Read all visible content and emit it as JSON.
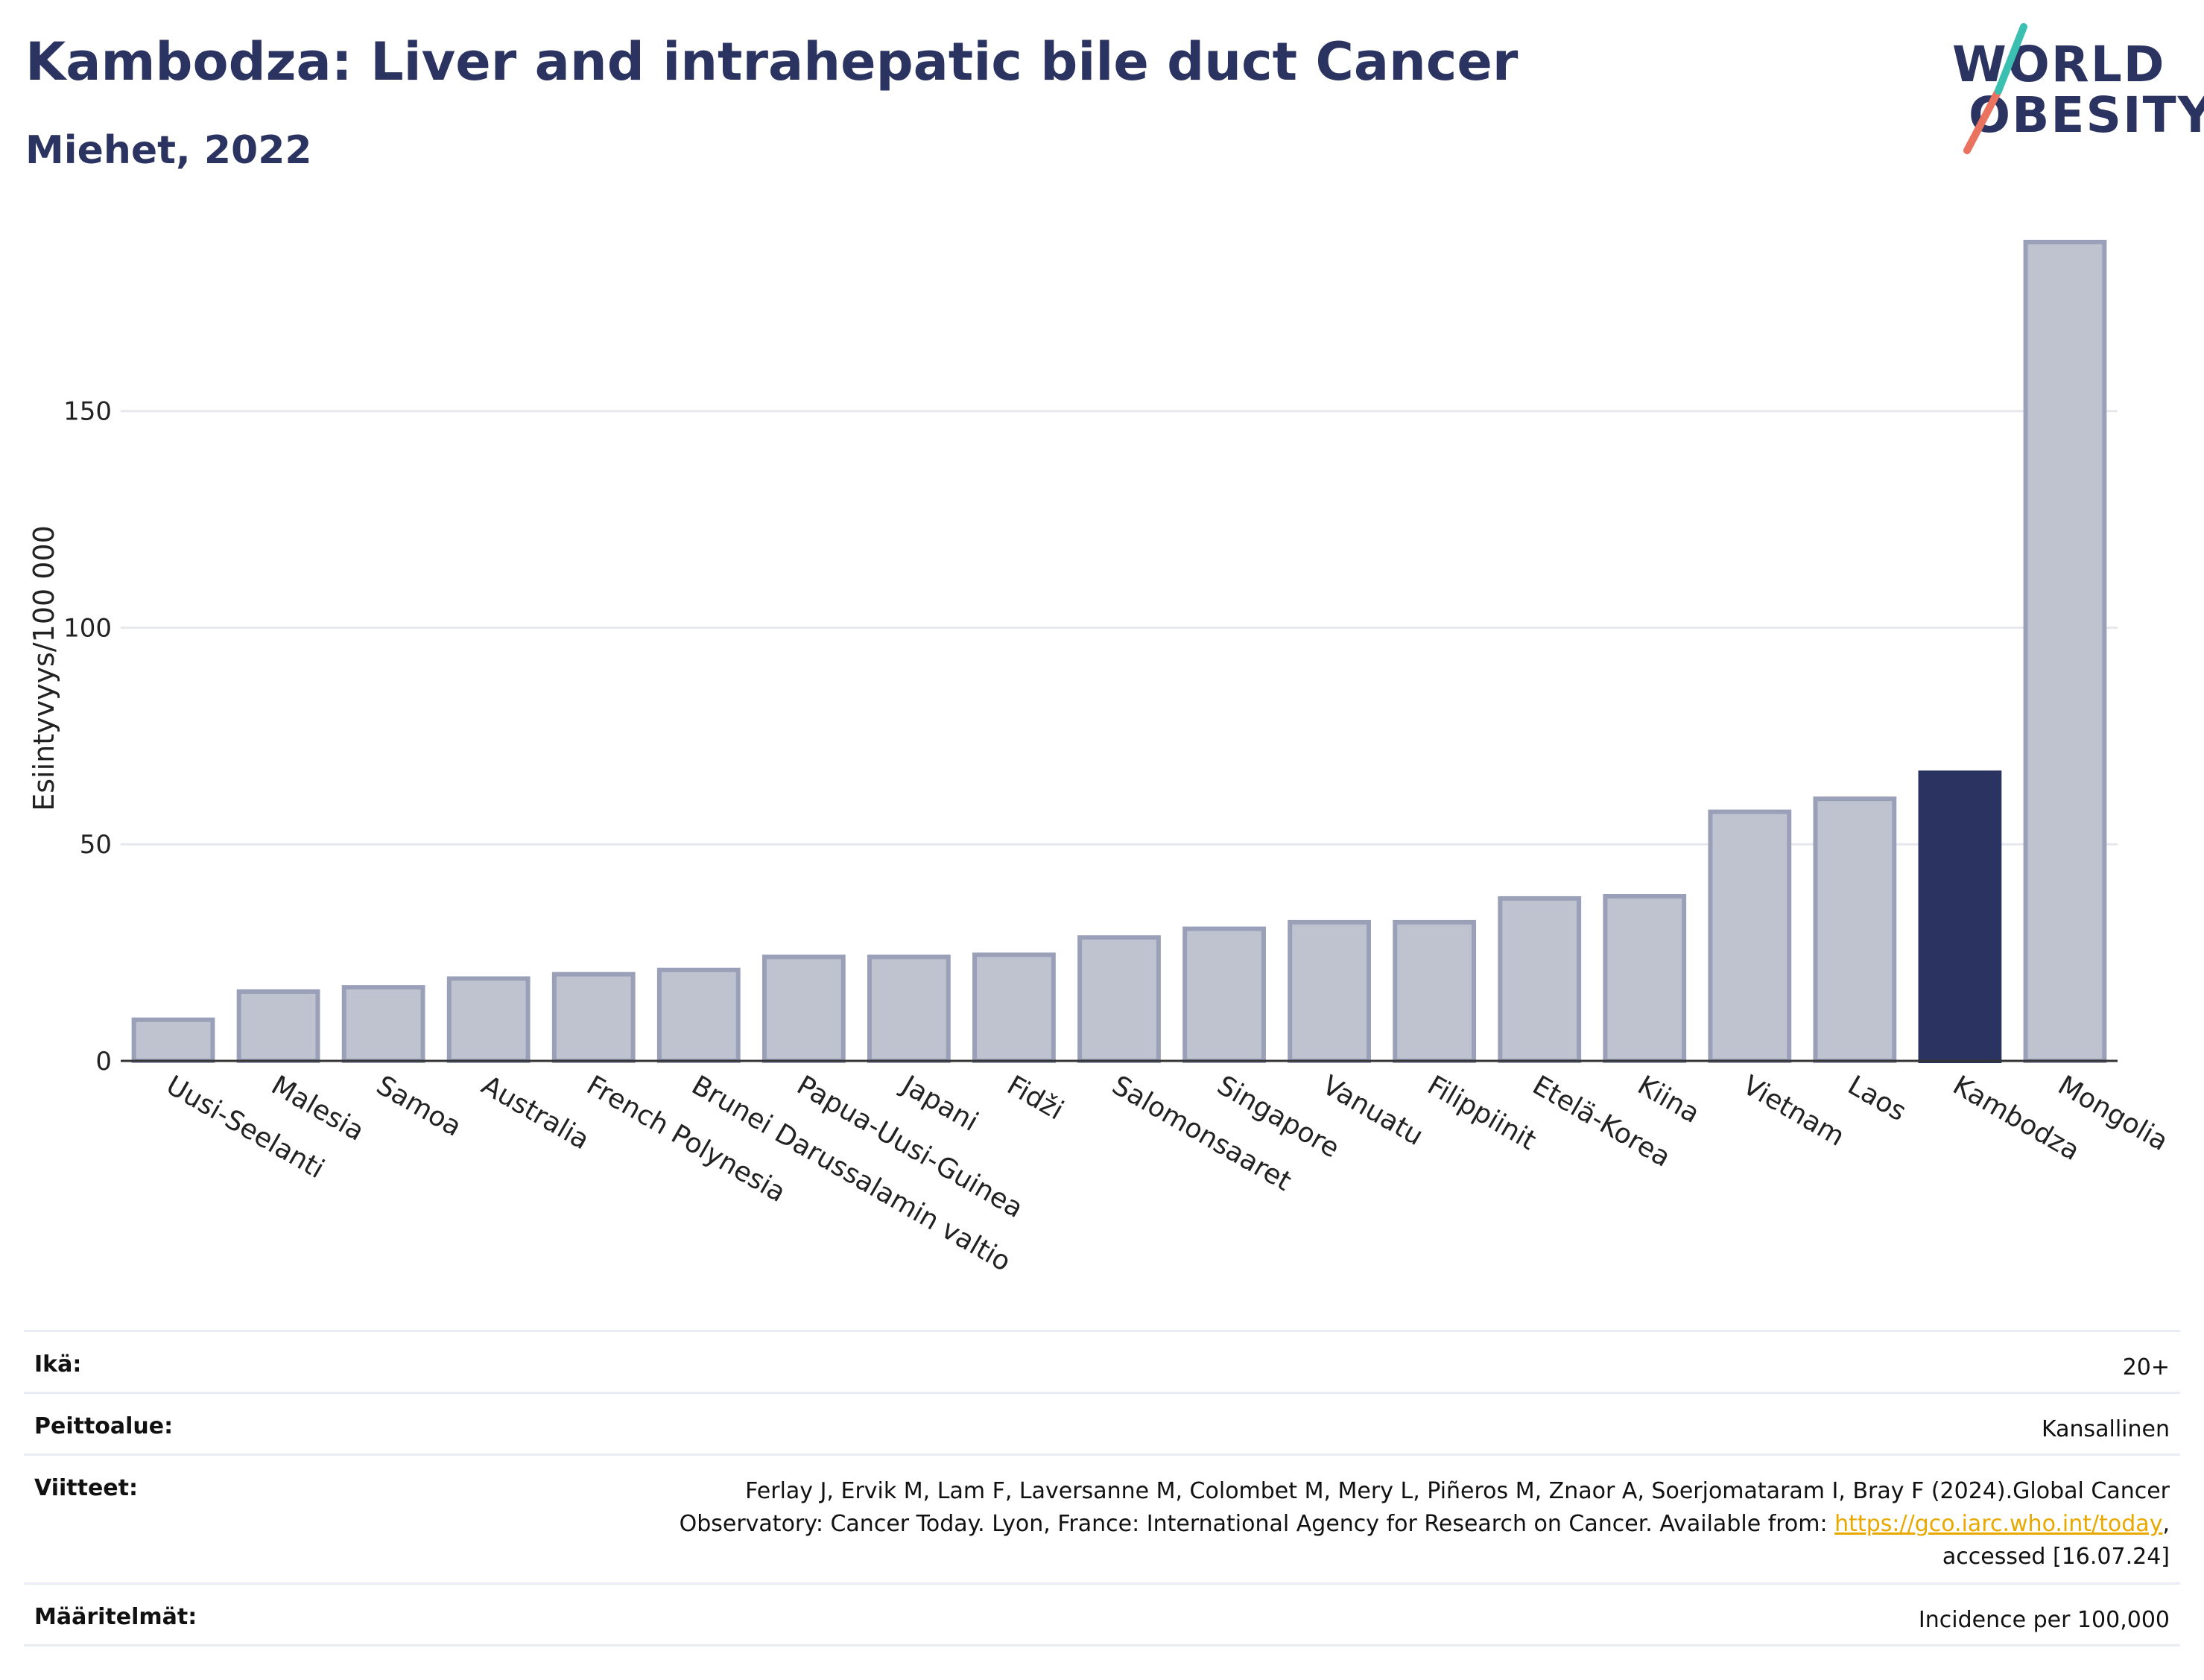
{
  "title": "Kambodza: Liver and intrahepatic bile duct Cancer",
  "subtitle": "Miehet, 2022",
  "logo": {
    "line1": "WORLD",
    "line2": "OBESITY"
  },
  "chart_data": {
    "type": "bar",
    "ylabel": "Esiintyvyys/100 000",
    "xlabel": "",
    "ylim": [
      0,
      195
    ],
    "yticks": [
      0,
      50,
      100,
      150
    ],
    "grid": true,
    "categories": [
      "Uusi-Seelanti",
      "Malesia",
      "Samoa",
      "Australia",
      "French Polynesia",
      "Brunei Darussalamin valtio",
      "Papua-Uusi-Guinea",
      "Japani",
      "Fidži",
      "Salomonsaaret",
      "Singapore",
      "Vanuatu",
      "Filippiinit",
      "Etelä-Korea",
      "Kiina",
      "Vietnam",
      "Laos",
      "Kambodza",
      "Mongolia"
    ],
    "values": [
      9.5,
      16,
      17,
      19,
      20,
      21,
      24,
      24,
      24.5,
      28.5,
      30.5,
      32,
      32,
      37.5,
      38,
      57.5,
      60.5,
      66.5,
      189
    ],
    "highlight": "Kambodza",
    "colors": {
      "bar": "#bfc3d0",
      "bar_border": "#9aa0b8",
      "highlight": "#2b3461",
      "grid": "#e6e8ee",
      "axis": "#333333"
    }
  },
  "meta": {
    "age_label": "Ikä:",
    "age_value": "20+",
    "coverage_label": "Peittoalue:",
    "coverage_value": "Kansallinen",
    "refs_label": "Viitteet:",
    "refs_line1": "Ferlay J, Ervik M, Lam F, Laversanne M, Colombet M, Mery L, Piñeros M, Znaor A, Soerjomataram I, Bray F (2024).Global Cancer",
    "refs_line2_pre": "Observatory: Cancer Today. Lyon, France: International Agency for Research on Cancer. Available from: ",
    "refs_link": "https://gco.iarc.who.int/today",
    "refs_line2_post": ",",
    "refs_line3": "accessed [16.07.24]",
    "defs_label": "Määritelmät:",
    "defs_value": "Incidence per 100,000"
  }
}
